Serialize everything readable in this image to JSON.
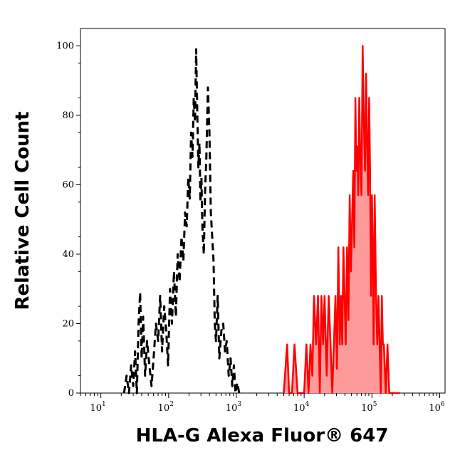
{
  "chart_data": {
    "type": "line",
    "xlabel": "HLA-G Alexa Fluor® 647",
    "ylabel": "Relative Cell Count",
    "x_scale": "log",
    "xlim": [
      5,
      1200000
    ],
    "ylim": [
      0,
      105
    ],
    "x_ticks": [
      {
        "value": 10,
        "base": "10",
        "exp": "1"
      },
      {
        "value": 100,
        "base": "10",
        "exp": "2"
      },
      {
        "value": 1000,
        "base": "10",
        "exp": "3"
      },
      {
        "value": 10000,
        "base": "10",
        "exp": "4"
      },
      {
        "value": 100000,
        "base": "10",
        "exp": "5"
      },
      {
        "value": 1000000,
        "base": "10",
        "exp": "6"
      }
    ],
    "y_ticks": [
      0,
      20,
      40,
      60,
      80,
      100
    ],
    "grid": false,
    "series": [
      {
        "style": "dashed",
        "color": "#000000",
        "fill": false,
        "x": [
          22,
          24,
          26,
          28,
          30,
          32,
          34,
          36,
          38,
          40,
          42,
          45,
          48,
          52,
          56,
          60,
          65,
          70,
          75,
          80,
          86,
          92,
          98,
          105,
          112,
          120,
          128,
          136,
          145,
          155,
          165,
          175,
          185,
          195,
          205,
          215,
          225,
          235,
          245,
          255,
          265,
          275,
          285,
          295,
          305,
          315,
          330,
          345,
          360,
          380,
          400,
          420,
          440,
          460,
          480,
          500,
          530,
          560,
          600,
          640,
          680,
          720,
          770,
          820,
          870,
          920,
          970,
          1030,
          1100
        ],
        "y": [
          0,
          5,
          0,
          8,
          2,
          12,
          0,
          20,
          29,
          10,
          22,
          5,
          15,
          8,
          2,
          10,
          20,
          15,
          28,
          12,
          25,
          18,
          8,
          30,
          20,
          35,
          22,
          40,
          32,
          45,
          38,
          52,
          48,
          62,
          56,
          75,
          68,
          85,
          78,
          99,
          80,
          65,
          72,
          55,
          62,
          48,
          40,
          58,
          68,
          88,
          75,
          52,
          45,
          38,
          20,
          15,
          28,
          10,
          18,
          20,
          12,
          15,
          5,
          10,
          2,
          8,
          0,
          3,
          0
        ]
      },
      {
        "style": "solid",
        "color": "#ff0000",
        "fill": true,
        "fill_color": "#ff9a9a",
        "x": [
          5000,
          5600,
          6000,
          6600,
          7200,
          8000,
          9000,
          10000,
          10800,
          11600,
          12400,
          13200,
          14000,
          15000,
          16000,
          17000,
          18000,
          19000,
          20000,
          21500,
          23000,
          24500,
          26000,
          27500,
          29000,
          30500,
          32000,
          33500,
          35000,
          36500,
          38000,
          39500,
          41000,
          43000,
          45000,
          47000,
          49000,
          51000,
          53000,
          55000,
          57000,
          59000,
          61000,
          63000,
          65000,
          67000,
          70000,
          73000,
          76000,
          79000,
          82000,
          85000,
          88000,
          91000,
          94000,
          97000,
          100000,
          103000,
          106000,
          110000,
          115000,
          120000,
          125000,
          130000,
          135000,
          140000,
          145000,
          150000,
          160000,
          170000,
          180000,
          190000,
          200000,
          210000,
          220000,
          240000,
          260000
        ],
        "y": [
          0,
          14,
          0,
          0,
          14,
          0,
          0,
          0,
          14,
          0,
          14,
          5,
          28,
          14,
          28,
          0,
          28,
          14,
          28,
          5,
          28,
          14,
          0,
          14,
          28,
          7,
          42,
          14,
          28,
          14,
          42,
          28,
          14,
          42,
          21,
          57,
          35,
          50,
          64,
          42,
          85,
          64,
          71,
          57,
          85,
          71,
          57,
          100,
          78,
          64,
          92,
          71,
          57,
          85,
          64,
          28,
          57,
          42,
          14,
          57,
          28,
          14,
          28,
          14,
          0,
          28,
          14,
          14,
          0,
          14,
          0,
          0,
          0,
          0,
          0,
          0,
          0
        ]
      }
    ]
  }
}
